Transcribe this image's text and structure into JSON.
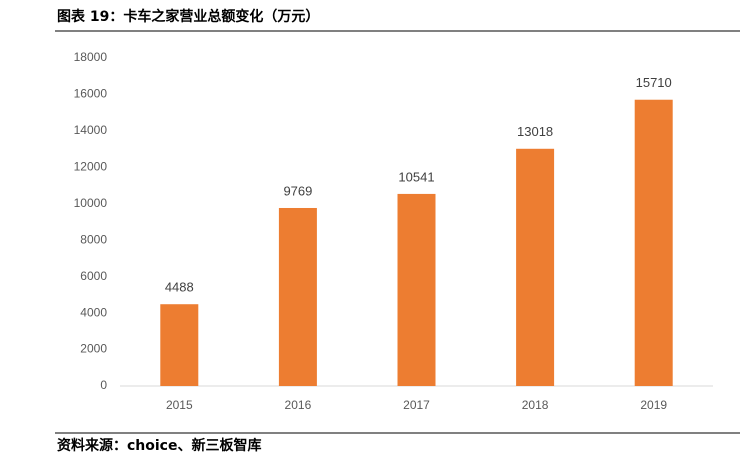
{
  "chart_data": {
    "type": "bar",
    "title": "图表 19：卡车之家营业总额变化（万元）",
    "source": "资料来源：choice、新三板智库",
    "categories": [
      "2015",
      "2016",
      "2017",
      "2018",
      "2019"
    ],
    "values": [
      4488,
      9769,
      10541,
      13018,
      15710
    ],
    "color": "#ED7D31",
    "ylim": [
      0,
      18000
    ],
    "yticks": [
      0,
      2000,
      4000,
      6000,
      8000,
      10000,
      12000,
      14000,
      16000,
      18000
    ],
    "grid": false
  }
}
